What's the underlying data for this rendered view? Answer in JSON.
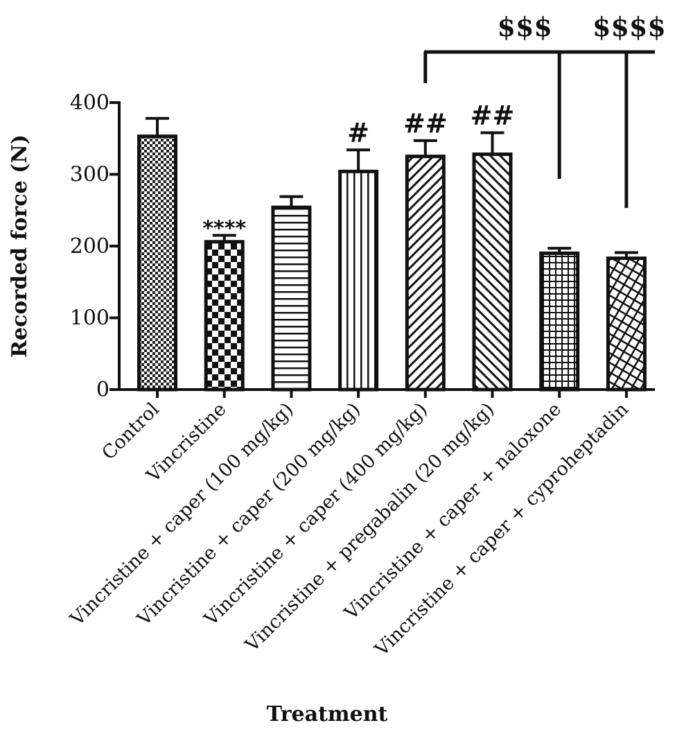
{
  "chart_data": {
    "type": "bar",
    "title": "",
    "xlabel": "Treatment",
    "ylabel": "Recorded force (N)",
    "ylim": [
      0,
      400
    ],
    "yticks": [
      "0",
      "100",
      "200",
      "300",
      "400"
    ],
    "categories": [
      "Control",
      "Vincristine",
      "Vincristine + caper (100 mg/kg)",
      "Vincristine + caper (200 mg/kg)",
      "Vincristine + caper (400 mg/kg)",
      "Vincristine + pregabalin (20 mg/kg)",
      "Vincristine + caper + naloxone",
      "Vincristine + caper + cyproheptadin"
    ],
    "values": [
      353,
      206,
      254,
      304,
      325,
      328,
      190,
      183
    ],
    "errors": [
      25,
      9,
      15,
      30,
      22,
      30,
      7,
      8
    ],
    "bar_annotations": [
      "",
      "****",
      "",
      "#",
      "##",
      "##",
      "",
      ""
    ],
    "bracket_labels": [
      "$$$",
      "$$$$"
    ],
    "bar_fill": "#ffffff",
    "bar_stroke": "#111111",
    "grid": false,
    "legend": "none"
  }
}
